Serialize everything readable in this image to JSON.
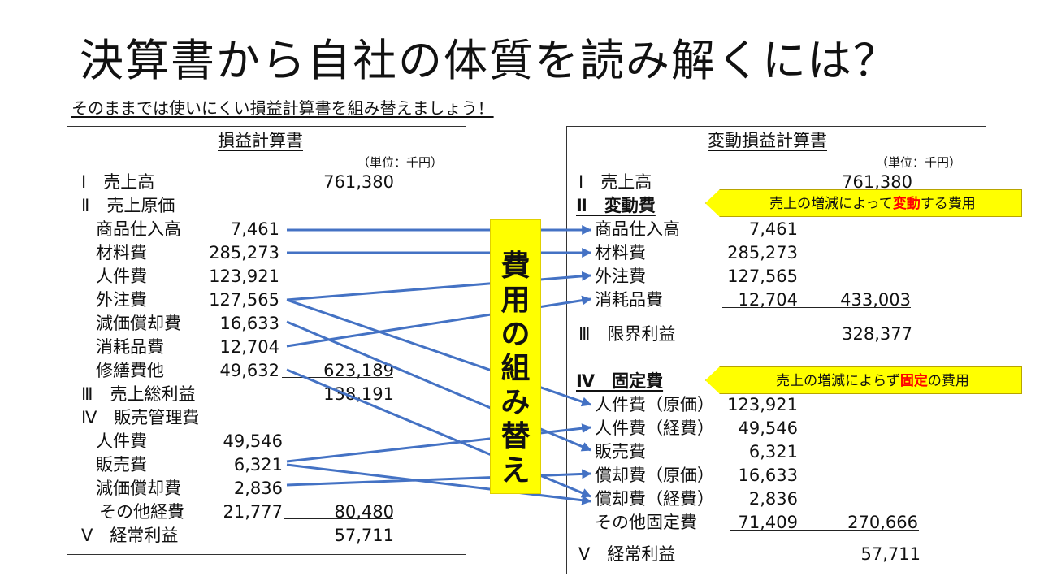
{
  "title": "決算書から自社の体質を読み解くには？",
  "subtitle": "そのままでは使いにくい損益計算書を組み替えましょう！",
  "left": {
    "title": "損益計算書",
    "unit": "（単位：千円）",
    "rows": [
      {
        "label": "Ⅰ　売上高",
        "total": "761,380"
      },
      {
        "label": "Ⅱ　売上原価"
      },
      {
        "label": "商品仕入高",
        "value": "7,461"
      },
      {
        "label": "材料費",
        "value": "285,273"
      },
      {
        "label": "人件費",
        "value": "123,921"
      },
      {
        "label": "外注費",
        "value": "127,565"
      },
      {
        "label": "減価償却費",
        "value": "16,633"
      },
      {
        "label": "消耗品費",
        "value": "12,704"
      },
      {
        "label": "修繕費他",
        "value": "49,632",
        "total": "623,189"
      },
      {
        "label": "Ⅲ　売上総利益",
        "total": "138,191"
      },
      {
        "label": "Ⅳ　販売管理費"
      },
      {
        "label": "人件費",
        "value": "49,546"
      },
      {
        "label": "販売費",
        "value": "6,321"
      },
      {
        "label": "減価償却費",
        "value": "2,836"
      },
      {
        "label": "その他経費",
        "value": "21,777",
        "total": "80,480"
      },
      {
        "label": "Ⅴ　経常利益",
        "total": "57,711"
      }
    ]
  },
  "middle": {
    "chars": [
      "費",
      "用",
      "の",
      "組",
      "み",
      "替",
      "え"
    ]
  },
  "right": {
    "title": "変動損益計算書",
    "unit": "（単位：千円）",
    "rows": [
      {
        "label": "Ⅰ　売上高",
        "total": "761,380"
      },
      {
        "label": "Ⅱ　変動費"
      },
      {
        "label": "商品仕入高",
        "value": "7,461"
      },
      {
        "label": "材料費",
        "value": "285,273"
      },
      {
        "label": "外注費",
        "value": "127,565"
      },
      {
        "label": "消耗品費",
        "value": "12,704",
        "total": "433,003"
      },
      {
        "label": "Ⅲ　限界利益",
        "total": "328,377"
      },
      {
        "label": "Ⅳ　固定費"
      },
      {
        "label": "人件費（原価）",
        "value": "123,921"
      },
      {
        "label": "人件費（経費）",
        "value": "49,546"
      },
      {
        "label": "販売費",
        "value": "6,321"
      },
      {
        "label": "償却費（原価）",
        "value": "16,633"
      },
      {
        "label": "償却費（経費）",
        "value": "2,836"
      },
      {
        "label": "その他固定費",
        "value": "71,409",
        "total": "270,666"
      },
      {
        "label": "Ⅴ　経常利益",
        "total": "57,711"
      }
    ]
  },
  "callouts": {
    "variable": {
      "before": "売上の増減によって",
      "em": "変動",
      "after": "する費用"
    },
    "fixed": {
      "before": "売上の増減によらず",
      "em": "固定",
      "after": "の費用"
    }
  },
  "colors": {
    "arrow": "#4472c4",
    "highlight": "#ffff00",
    "emphasis": "#ff0000"
  }
}
